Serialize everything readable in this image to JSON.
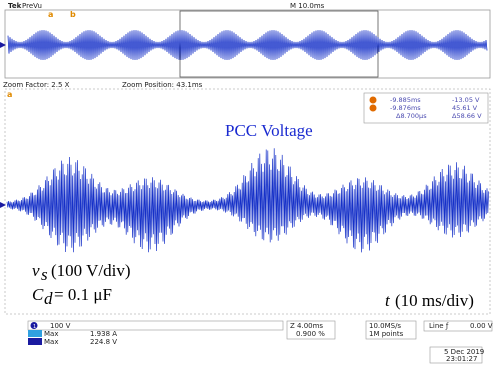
{
  "header": {
    "brand": "Tek",
    "mode": "PreVu",
    "timebase": "M 10.0ms",
    "zoom_factor": "Zoom Factor: 2.5 X",
    "zoom_position": "Zoom Position: 43.1ms"
  },
  "cursors": {
    "a": {
      "marker": "a",
      "time": "-9.885ms",
      "volts": "-13.05 V"
    },
    "b": {
      "marker": "b",
      "time": "-9.876ms",
      "volts": "45.61 V"
    },
    "delta_time": "Δ8.700μs",
    "delta_volts": "Δ58.66 V"
  },
  "annotations": {
    "title": "PCC Voltage",
    "vs_symbol": "v",
    "vs_sub": "s",
    "vs_scale": "(100 V/div)",
    "cd_symbol": "C",
    "cd_sub": "d",
    "cd_value": "= 0.1 μF",
    "t_symbol": "t",
    "t_scale": "(10 ms/div)"
  },
  "status": {
    "ch1_num": "1",
    "ch1_scale": "100 V",
    "max1_label": "Max",
    "max1_value": "1.938 A",
    "max2_label": "Max",
    "max2_value": "224.8 V",
    "zoom_time": "Z 4.00ms",
    "zoom_pct": "0.900 %",
    "rate": "10.0MS/s",
    "points": "1M points",
    "trigger": "Line ƒ",
    "trigger_level": "0.00 V",
    "date": "5 Dec 2019",
    "time": "23:01:27"
  }
}
